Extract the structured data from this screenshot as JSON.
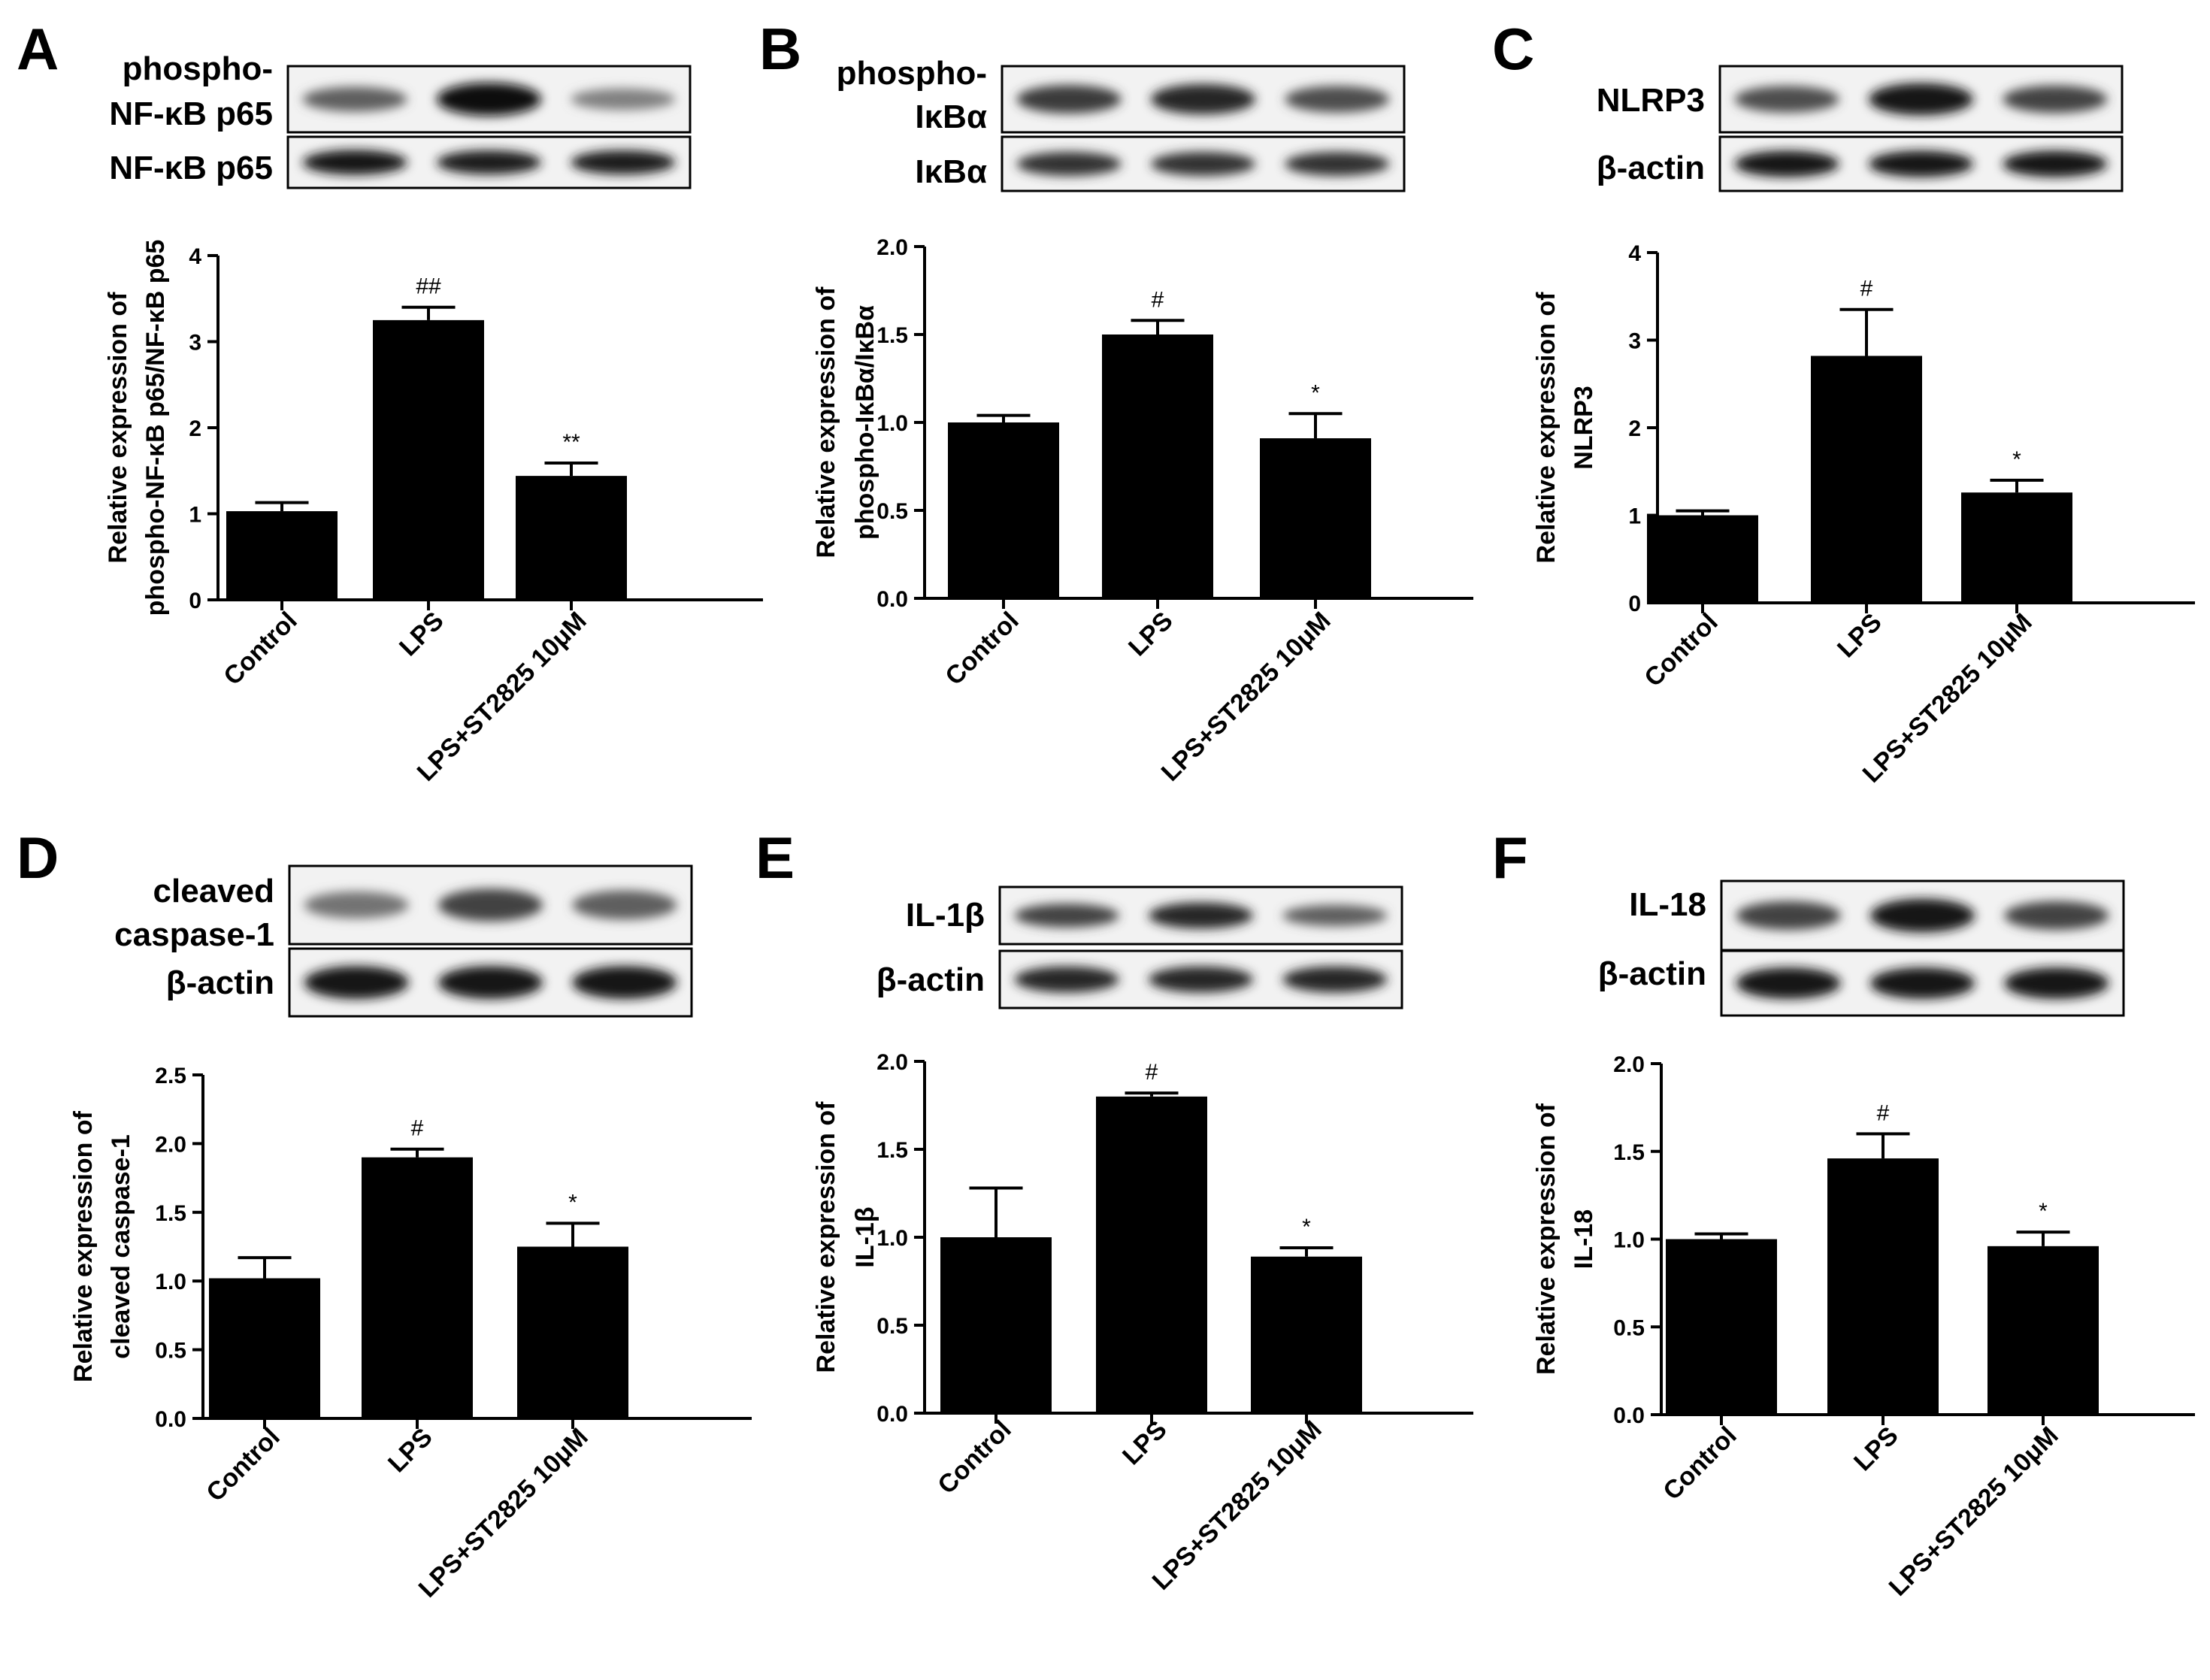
{
  "figure": {
    "panels": [
      {
        "letter": "A",
        "blot": {
          "rows": [
            {
              "label": [
                "phospho-",
                "NF-κB p65"
              ],
              "intensity": [
                0.55,
                1.0,
                0.38
              ]
            },
            {
              "label": [
                "NF-κB p65"
              ],
              "intensity": [
                0.95,
                0.9,
                0.9
              ]
            }
          ]
        }
      },
      {
        "letter": "B",
        "blot": {
          "rows": [
            {
              "label": [
                "phospho-",
                "IκBα"
              ],
              "intensity": [
                0.75,
                0.85,
                0.65
              ]
            },
            {
              "label": [
                "IκBα"
              ],
              "intensity": [
                0.8,
                0.8,
                0.8
              ]
            }
          ]
        }
      },
      {
        "letter": "C",
        "blot": {
          "rows": [
            {
              "label": [
                "NLRP3"
              ],
              "intensity": [
                0.65,
                0.95,
                0.7
              ]
            },
            {
              "label": [
                "β-actin"
              ],
              "intensity": [
                0.95,
                0.95,
                0.95
              ]
            }
          ]
        }
      },
      {
        "letter": "D",
        "blot": {
          "rows": [
            {
              "label": [
                "cleaved",
                "caspase-1"
              ],
              "intensity": [
                0.45,
                0.7,
                0.55
              ]
            },
            {
              "label": [
                "β-actin"
              ],
              "intensity": [
                0.95,
                0.95,
                0.95
              ]
            }
          ]
        }
      },
      {
        "letter": "E",
        "blot": {
          "rows": [
            {
              "label": [
                "IL-1β"
              ],
              "intensity": [
                0.7,
                0.85,
                0.55
              ]
            },
            {
              "label": [
                "β-actin"
              ],
              "intensity": [
                0.85,
                0.85,
                0.85
              ]
            }
          ]
        }
      },
      {
        "letter": "F",
        "blot": {
          "rows": [
            {
              "label": [
                "IL-18"
              ],
              "intensity": [
                0.7,
                0.95,
                0.7
              ]
            },
            {
              "label": [
                "β-actin"
              ],
              "intensity": [
                0.95,
                0.95,
                0.95
              ]
            }
          ]
        }
      }
    ]
  },
  "chart_data": [
    {
      "panel": "A",
      "type": "bar",
      "categories": [
        "Control",
        "LPS",
        "LPS+ST2825 10μM"
      ],
      "values": [
        1.03,
        3.25,
        1.44
      ],
      "errors": [
        0.1,
        0.15,
        0.15
      ],
      "significance": [
        "",
        "##",
        "**"
      ],
      "ylabel": [
        "Relative expression of",
        "phospho-NF-κB p65/NF-κB p65"
      ],
      "ylim": [
        0,
        4
      ],
      "yticks": [
        "0",
        "1",
        "2",
        "3",
        "4"
      ],
      "bar_color": "#000000"
    },
    {
      "panel": "B",
      "type": "bar",
      "categories": [
        "Control",
        "LPS",
        "LPS+ST2825 10μM"
      ],
      "values": [
        1.0,
        1.5,
        0.91
      ],
      "errors": [
        0.04,
        0.08,
        0.14
      ],
      "significance": [
        "",
        "#",
        "*"
      ],
      "ylabel": [
        "Relative expression of",
        "phospho-IκBα/IκBα"
      ],
      "ylim": [
        0,
        2.0
      ],
      "yticks": [
        "0.0",
        "0.5",
        "1.0",
        "1.5",
        "2.0"
      ],
      "bar_color": "#000000"
    },
    {
      "panel": "C",
      "type": "bar",
      "categories": [
        "Control",
        "LPS",
        "LPS+ST2825 10μM"
      ],
      "values": [
        1.0,
        2.82,
        1.26
      ],
      "errors": [
        0.05,
        0.53,
        0.14
      ],
      "significance": [
        "",
        "#",
        "*"
      ],
      "ylabel": [
        "Relative expression of",
        "NLRP3"
      ],
      "ylim": [
        0,
        4
      ],
      "yticks": [
        "0",
        "1",
        "2",
        "3",
        "4"
      ],
      "bar_color": "#000000"
    },
    {
      "panel": "D",
      "type": "bar",
      "categories": [
        "Control",
        "LPS",
        "LPS+ST2825 10μM"
      ],
      "values": [
        1.02,
        1.9,
        1.25
      ],
      "errors": [
        0.15,
        0.06,
        0.17
      ],
      "significance": [
        "",
        "#",
        "*"
      ],
      "ylabel": [
        "Relative expression of",
        "cleaved caspase-1"
      ],
      "ylim": [
        0,
        2.5
      ],
      "yticks": [
        "0.0",
        "0.5",
        "1.0",
        "1.5",
        "2.0",
        "2.5"
      ],
      "bar_color": "#000000"
    },
    {
      "panel": "E",
      "type": "bar",
      "categories": [
        "Control",
        "LPS",
        "LPS+ST2825 10μM"
      ],
      "values": [
        1.0,
        1.8,
        0.89
      ],
      "errors": [
        0.28,
        0.02,
        0.05
      ],
      "significance": [
        "",
        "#",
        "*"
      ],
      "ylabel": [
        "Relative expression of",
        "IL-1β"
      ],
      "ylim": [
        0,
        2.0
      ],
      "yticks": [
        "0.0",
        "0.5",
        "1.0",
        "1.5",
        "2.0"
      ],
      "bar_color": "#000000"
    },
    {
      "panel": "F",
      "type": "bar",
      "categories": [
        "Control",
        "LPS",
        "LPS+ST2825 10μM"
      ],
      "values": [
        1.0,
        1.46,
        0.96
      ],
      "errors": [
        0.03,
        0.14,
        0.08
      ],
      "significance": [
        "",
        "#",
        "*"
      ],
      "ylabel": [
        "Relative expression of",
        "IL-18"
      ],
      "ylim": [
        0,
        2.0
      ],
      "yticks": [
        "0.0",
        "0.5",
        "1.0",
        "1.5",
        "2.0"
      ],
      "bar_color": "#000000"
    }
  ]
}
